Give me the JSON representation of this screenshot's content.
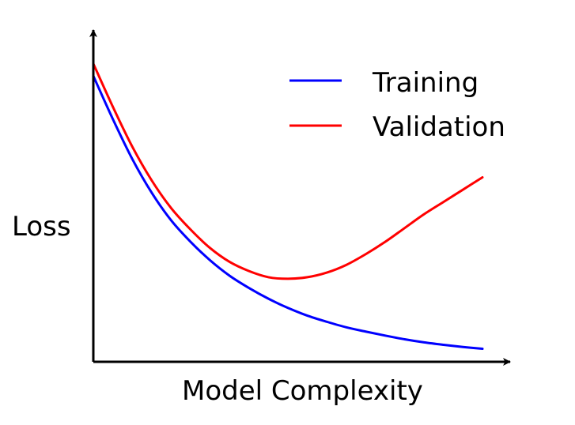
{
  "chart_data": {
    "type": "line",
    "title": "",
    "xlabel": "Model Complexity",
    "ylabel": "Loss",
    "x_ticks": "none",
    "y_ticks": "none",
    "grid": false,
    "legend_position": "top-right",
    "xlim": [
      0,
      10
    ],
    "ylim": [
      0,
      10
    ],
    "x": [
      0,
      0.5,
      1,
      1.5,
      2,
      2.5,
      3,
      3.5,
      4,
      4.5,
      5,
      5.5,
      6,
      6.5,
      7,
      7.5,
      8,
      8.5,
      9,
      9.5,
      10
    ],
    "series": [
      {
        "name": "Training",
        "color": "#0000ff",
        "values": [
          9.2,
          7.8,
          6.5,
          5.4,
          4.5,
          3.8,
          3.2,
          2.7,
          2.3,
          1.95,
          1.65,
          1.4,
          1.2,
          1.02,
          0.88,
          0.75,
          0.63,
          0.53,
          0.45,
          0.38,
          0.32
        ]
      },
      {
        "name": "Validation",
        "color": "#ff0000",
        "values": [
          9.6,
          8.2,
          6.9,
          5.8,
          4.9,
          4.2,
          3.6,
          3.15,
          2.85,
          2.65,
          2.6,
          2.65,
          2.8,
          3.05,
          3.4,
          3.8,
          4.25,
          4.7,
          5.1,
          5.5,
          5.9
        ]
      }
    ]
  }
}
